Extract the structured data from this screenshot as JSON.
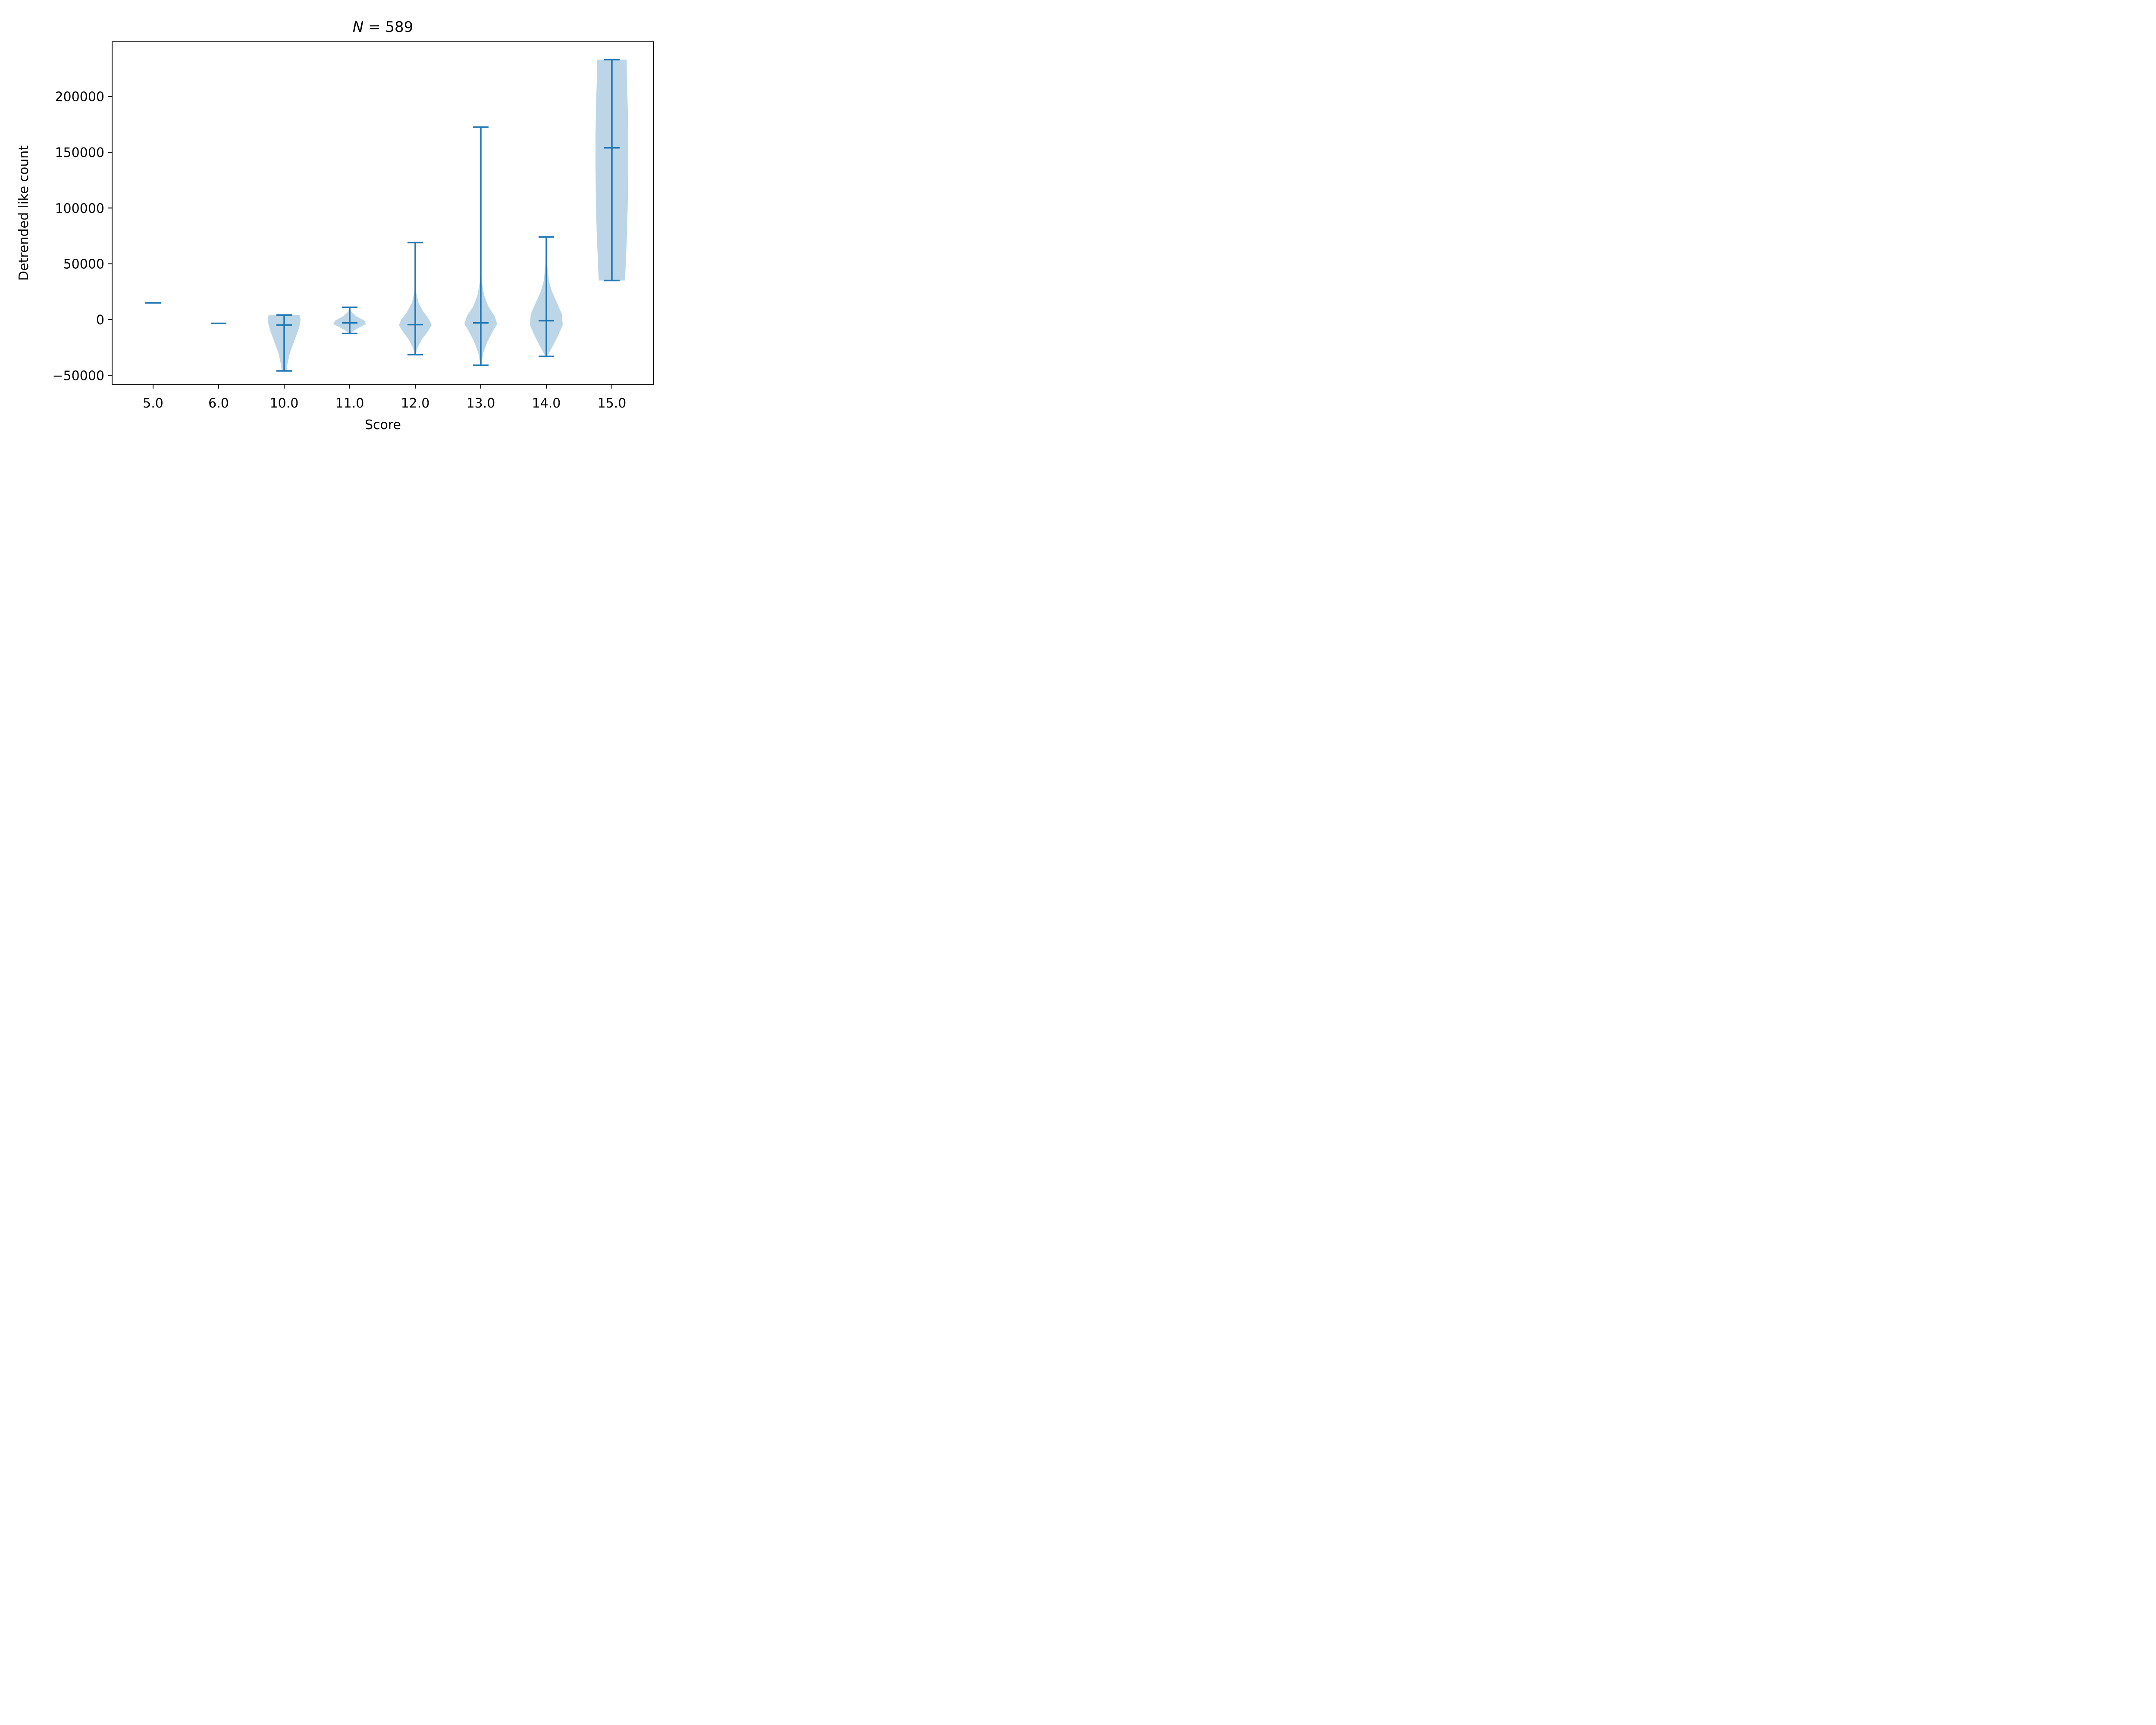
{
  "chart_data": {
    "type": "violin",
    "title_prefix": "N",
    "title_eq": " = ",
    "title_value": "589",
    "xlabel": "Score",
    "ylabel": "Detrended like count",
    "ylim": [
      -58000,
      249000
    ],
    "yticks": [
      -50000,
      0,
      50000,
      100000,
      150000,
      200000
    ],
    "ytick_labels": [
      "−50000",
      "0",
      "50000",
      "100000",
      "150000",
      "200000"
    ],
    "categories": [
      "5.0",
      "6.0",
      "10.0",
      "11.0",
      "12.0",
      "13.0",
      "14.0",
      "15.0"
    ],
    "grid": false,
    "colors": {
      "body": "#bcd6e8",
      "line": "#1f77b4",
      "axis": "#000000"
    },
    "violins": [
      {
        "category": "5.0",
        "min": 15000,
        "max": 15000,
        "median": 15000,
        "profile": []
      },
      {
        "category": "6.0",
        "min": -3500,
        "max": -3500,
        "median": -3500,
        "profile": []
      },
      {
        "category": "10.0",
        "min": -46000,
        "max": 4000,
        "median": -5000,
        "profile": [
          [
            -46000,
            0.15
          ],
          [
            -40000,
            0.2
          ],
          [
            -30000,
            0.35
          ],
          [
            -20000,
            0.6
          ],
          [
            -10000,
            0.85
          ],
          [
            -5000,
            0.95
          ],
          [
            0,
            1.0
          ],
          [
            4000,
            0.95
          ]
        ]
      },
      {
        "category": "11.0",
        "min": -12500,
        "max": 11000,
        "median": -3000,
        "profile": [
          [
            -12500,
            0.04
          ],
          [
            -10000,
            0.25
          ],
          [
            -7000,
            0.6
          ],
          [
            -4000,
            1.0
          ],
          [
            -1000,
            0.9
          ],
          [
            3000,
            0.4
          ],
          [
            7000,
            0.1
          ],
          [
            11000,
            0.02
          ]
        ]
      },
      {
        "category": "12.0",
        "min": -31500,
        "max": 69000,
        "median": -4500,
        "profile": [
          [
            -31500,
            0.02
          ],
          [
            -25000,
            0.15
          ],
          [
            -18000,
            0.4
          ],
          [
            -10000,
            0.8
          ],
          [
            -5000,
            1.0
          ],
          [
            0,
            0.85
          ],
          [
            7000,
            0.5
          ],
          [
            15000,
            0.2
          ],
          [
            25000,
            0.05
          ],
          [
            40000,
            0.01
          ],
          [
            69000,
            0.005
          ]
        ]
      },
      {
        "category": "13.0",
        "min": -41000,
        "max": 172500,
        "median": -3000,
        "profile": [
          [
            -41000,
            0.02
          ],
          [
            -30000,
            0.15
          ],
          [
            -20000,
            0.4
          ],
          [
            -10000,
            0.75
          ],
          [
            -4000,
            1.0
          ],
          [
            3000,
            0.85
          ],
          [
            12000,
            0.45
          ],
          [
            22000,
            0.2
          ],
          [
            35000,
            0.05
          ],
          [
            60000,
            0.01
          ],
          [
            100000,
            0.005
          ],
          [
            172500,
            0.004
          ]
        ]
      },
      {
        "category": "14.0",
        "min": -33000,
        "max": 74000,
        "median": -1000,
        "profile": [
          [
            -33000,
            0.05
          ],
          [
            -25000,
            0.35
          ],
          [
            -15000,
            0.7
          ],
          [
            -5000,
            1.0
          ],
          [
            5000,
            0.95
          ],
          [
            15000,
            0.65
          ],
          [
            25000,
            0.35
          ],
          [
            35000,
            0.15
          ],
          [
            50000,
            0.05
          ],
          [
            74000,
            0.01
          ]
        ]
      },
      {
        "category": "15.0",
        "min": 35000,
        "max": 233000,
        "median": 154000,
        "profile": [
          [
            35000,
            0.8
          ],
          [
            50000,
            0.85
          ],
          [
            80000,
            0.93
          ],
          [
            110000,
            0.98
          ],
          [
            140000,
            1.0
          ],
          [
            165000,
            1.0
          ],
          [
            190000,
            0.97
          ],
          [
            215000,
            0.92
          ],
          [
            233000,
            0.9
          ]
        ]
      }
    ]
  }
}
